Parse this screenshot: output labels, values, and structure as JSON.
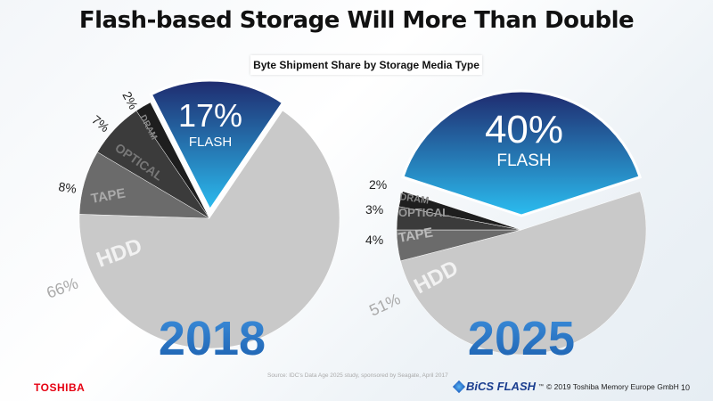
{
  "title": "Flash-based Storage Will More Than Double",
  "subtitle": "Byte Shipment Share by Storage Media Type",
  "chart_data": [
    {
      "type": "pie",
      "title": "2018",
      "categories": [
        "FLASH",
        "HDD",
        "TAPE",
        "OPTICAL",
        "DRAM"
      ],
      "values": [
        17,
        66,
        8,
        7,
        2
      ],
      "labels": [
        "17%",
        "66%",
        "8%",
        "7%",
        "2%"
      ]
    },
    {
      "type": "pie",
      "title": "2025",
      "categories": [
        "FLASH",
        "HDD",
        "TAPE",
        "OPTICAL",
        "DRAM"
      ],
      "values": [
        40,
        51,
        4,
        3,
        2
      ],
      "labels": [
        "40%",
        "51%",
        "4%",
        "3%",
        "2%"
      ]
    }
  ],
  "colors": {
    "flash_top": "#1f2a6e",
    "flash_bottom": "#2bbdf0",
    "HDD": "#c9c9c9",
    "TAPE": "#6b6b6b",
    "OPTICAL": "#3b3b3b",
    "DRAM": "#1e1e1e",
    "year": "#1e73be"
  },
  "source": "Source: IDC's Data Age 2025 study, sponsored by Seagate, April 2017",
  "footer": {
    "logo": "TOSHIBA",
    "brand": "BiCS FLASH",
    "tm": "™",
    "copyright": "© 2019 Toshiba Memory Europe GmbH",
    "page": "10"
  }
}
